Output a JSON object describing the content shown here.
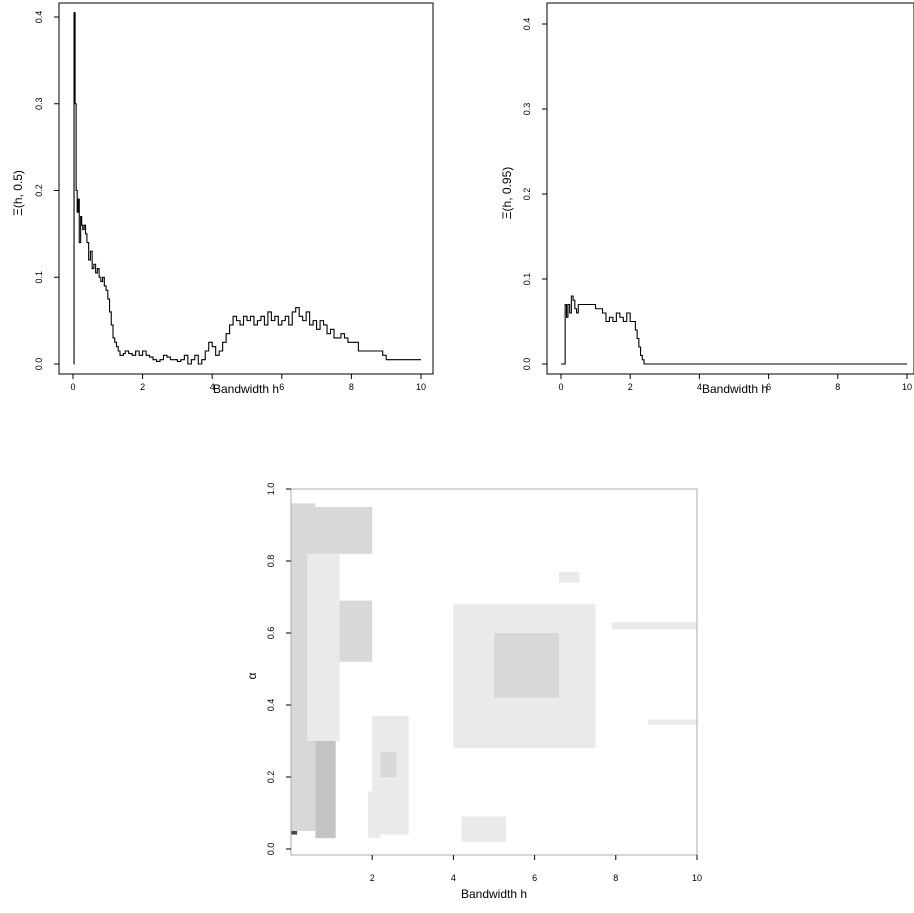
{
  "chart_data": [
    {
      "type": "line",
      "xlabel": "Bandwidth h",
      "ylabel": "Ξ(h, 0.5)",
      "xlim": [
        0,
        10
      ],
      "ylim": [
        0,
        0.41
      ],
      "x_ticks": [
        "0",
        "2",
        "4",
        "6",
        "8",
        "10"
      ],
      "y_ticks": [
        "0.0",
        "0.1",
        "0.2",
        "0.3",
        "0.4"
      ],
      "grid": false,
      "series": [
        {
          "x": [
            0.02,
            0.03,
            0.06,
            0.09,
            0.12,
            0.15,
            0.18,
            0.22,
            0.25,
            0.28,
            0.32,
            0.36,
            0.4,
            0.45,
            0.5,
            0.55,
            0.6,
            0.65,
            0.7,
            0.75,
            0.8,
            0.85,
            0.9,
            0.95,
            1.0,
            1.05,
            1.1,
            1.15,
            1.2,
            1.25,
            1.3,
            1.35,
            1.4,
            1.45,
            1.5,
            1.6,
            1.7,
            1.8,
            1.9,
            2.0,
            2.1,
            2.2,
            2.3,
            2.4,
            2.5,
            2.6,
            2.7,
            2.8,
            2.9,
            3.0,
            3.1,
            3.2,
            3.3,
            3.4,
            3.5,
            3.6,
            3.7,
            3.8,
            3.9,
            4.0,
            4.1,
            4.2,
            4.3,
            4.4,
            4.5,
            4.6,
            4.7,
            4.8,
            4.9,
            5.0,
            5.1,
            5.2,
            5.3,
            5.4,
            5.5,
            5.6,
            5.7,
            5.8,
            5.9,
            6.0,
            6.1,
            6.2,
            6.3,
            6.4,
            6.5,
            6.6,
            6.7,
            6.8,
            6.9,
            7.0,
            7.1,
            7.2,
            7.3,
            7.4,
            7.5,
            7.6,
            7.7,
            7.8,
            7.9,
            8.0,
            8.2,
            8.5,
            8.9,
            9.0,
            9.5,
            10.0
          ],
          "y": [
            0.0,
            0.405,
            0.3,
            0.2,
            0.175,
            0.19,
            0.14,
            0.17,
            0.16,
            0.155,
            0.16,
            0.15,
            0.14,
            0.12,
            0.13,
            0.11,
            0.115,
            0.105,
            0.11,
            0.1,
            0.095,
            0.1,
            0.09,
            0.085,
            0.075,
            0.06,
            0.045,
            0.03,
            0.025,
            0.02,
            0.015,
            0.01,
            0.01,
            0.012,
            0.015,
            0.012,
            0.01,
            0.015,
            0.01,
            0.015,
            0.01,
            0.008,
            0.005,
            0.003,
            0.005,
            0.01,
            0.008,
            0.005,
            0.005,
            0.003,
            0.005,
            0.01,
            0.0,
            0.005,
            0.01,
            0.0,
            0.005,
            0.015,
            0.025,
            0.02,
            0.01,
            0.015,
            0.025,
            0.035,
            0.045,
            0.055,
            0.05,
            0.045,
            0.055,
            0.05,
            0.055,
            0.045,
            0.05,
            0.055,
            0.045,
            0.06,
            0.05,
            0.055,
            0.045,
            0.05,
            0.055,
            0.045,
            0.06,
            0.065,
            0.055,
            0.05,
            0.06,
            0.045,
            0.05,
            0.04,
            0.05,
            0.045,
            0.035,
            0.04,
            0.03,
            0.03,
            0.035,
            0.03,
            0.025,
            0.025,
            0.015,
            0.015,
            0.01,
            0.005,
            0.005,
            0.005
          ]
        }
      ]
    },
    {
      "type": "line",
      "xlabel": "Bandwidth h",
      "ylabel": "Ξ(h, 0.95)",
      "xlim": [
        0,
        10
      ],
      "ylim": [
        0,
        0.41
      ],
      "x_ticks": [
        "0",
        "2",
        "4",
        "6",
        "8",
        "10"
      ],
      "y_ticks": [
        "0.0",
        "0.1",
        "0.2",
        "0.3",
        "0.4"
      ],
      "grid": false,
      "series": [
        {
          "x": [
            0.0,
            0.1,
            0.12,
            0.16,
            0.2,
            0.25,
            0.3,
            0.35,
            0.4,
            0.45,
            0.5,
            0.6,
            0.7,
            0.8,
            0.9,
            1.0,
            1.1,
            1.2,
            1.3,
            1.4,
            1.5,
            1.6,
            1.7,
            1.8,
            1.9,
            2.0,
            2.1,
            2.15,
            2.2,
            2.25,
            2.3,
            2.35,
            2.4,
            2.5,
            10.0
          ],
          "y": [
            0.0,
            0.0,
            0.07,
            0.055,
            0.07,
            0.06,
            0.08,
            0.075,
            0.065,
            0.06,
            0.07,
            0.07,
            0.07,
            0.07,
            0.07,
            0.065,
            0.065,
            0.06,
            0.05,
            0.055,
            0.05,
            0.06,
            0.055,
            0.05,
            0.06,
            0.05,
            0.05,
            0.04,
            0.03,
            0.02,
            0.01,
            0.005,
            0.0,
            0.0,
            0.0
          ]
        }
      ]
    },
    {
      "type": "heatmap",
      "xlabel": "Bandwidth h",
      "ylabel": "α",
      "xlim": [
        0,
        10
      ],
      "ylim": [
        0,
        1
      ],
      "x_ticks": [
        "2",
        "4",
        "6",
        "8",
        "10"
      ],
      "y_ticks": [
        "0.0",
        "0.2",
        "0.4",
        "0.6",
        "0.8",
        "1.0"
      ],
      "colors": [
        "#ffffff",
        "#eaeaea",
        "#d8d8d8",
        "#c3c3c3",
        "#a8a8a8",
        "#828282",
        "#4a4a4a"
      ],
      "regions": [
        {
          "x": [
            0.0,
            0.15
          ],
          "y": [
            0.04,
            0.94
          ],
          "level": 6
        },
        {
          "x": [
            0.0,
            0.25
          ],
          "y": [
            0.06,
            0.9
          ],
          "level": 4
        },
        {
          "x": [
            0.0,
            0.6
          ],
          "y": [
            0.05,
            0.96
          ],
          "level": 2
        },
        {
          "x": [
            0.6,
            1.1
          ],
          "y": [
            0.03,
            0.31
          ],
          "level": 3
        },
        {
          "x": [
            0.5,
            2.0
          ],
          "y": [
            0.82,
            0.95
          ],
          "level": 2
        },
        {
          "x": [
            1.0,
            2.0
          ],
          "y": [
            0.52,
            0.69
          ],
          "level": 2
        },
        {
          "x": [
            0.4,
            1.2
          ],
          "y": [
            0.3,
            0.82
          ],
          "level": 1
        },
        {
          "x": [
            2.0,
            2.9
          ],
          "y": [
            0.04,
            0.37
          ],
          "level": 1
        },
        {
          "x": [
            2.2,
            2.6
          ],
          "y": [
            0.2,
            0.27
          ],
          "level": 2
        },
        {
          "x": [
            1.9,
            2.2
          ],
          "y": [
            0.03,
            0.16
          ],
          "level": 1
        },
        {
          "x": [
            4.2,
            5.3
          ],
          "y": [
            0.02,
            0.09
          ],
          "level": 1
        },
        {
          "x": [
            4.0,
            7.5
          ],
          "y": [
            0.28,
            0.68
          ],
          "level": 1
        },
        {
          "x": [
            5.0,
            6.6
          ],
          "y": [
            0.42,
            0.6
          ],
          "level": 2
        },
        {
          "x": [
            7.9,
            10.0
          ],
          "y": [
            0.61,
            0.63
          ],
          "level": 1
        },
        {
          "x": [
            8.8,
            10.0
          ],
          "y": [
            0.345,
            0.36
          ],
          "level": 1
        },
        {
          "x": [
            6.6,
            7.1
          ],
          "y": [
            0.74,
            0.77
          ],
          "level": 1
        }
      ]
    }
  ]
}
